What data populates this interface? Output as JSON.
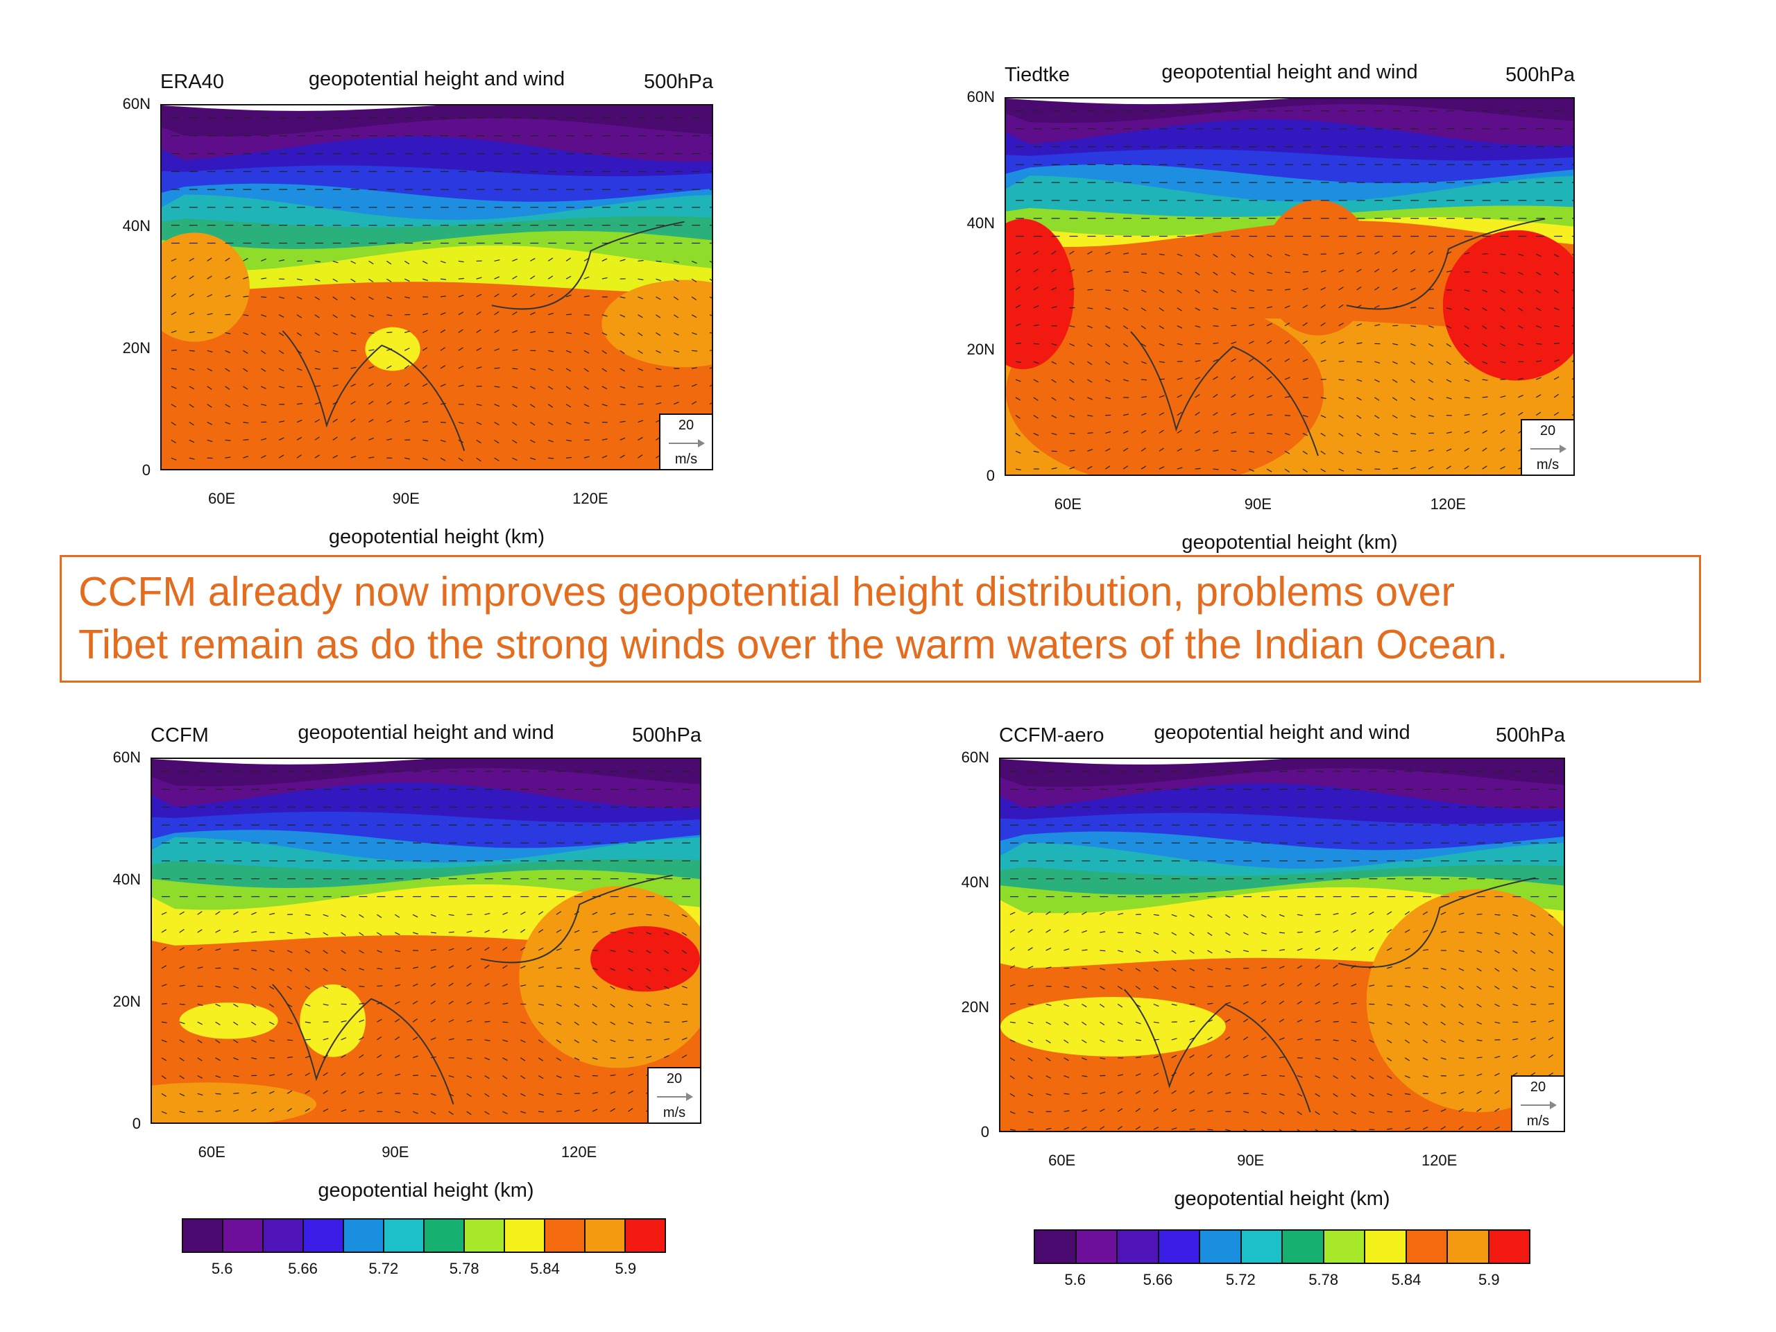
{
  "panels": [
    {
      "left_title": "ERA40",
      "center_title": "geopotential height and wind",
      "right_title": "500hPa",
      "y_labels": [
        "60N",
        "40N",
        "20N",
        "0"
      ],
      "x_labels": [
        "60E",
        "90E",
        "120E"
      ],
      "x_title": "geopotential height (km)",
      "ref_vector": {
        "value": "20",
        "unit": "m/s"
      }
    },
    {
      "left_title": "Tiedtke",
      "center_title": "geopotential height and wind",
      "right_title": "500hPa",
      "y_labels": [
        "60N",
        "40N",
        "20N",
        "0"
      ],
      "x_labels": [
        "60E",
        "90E",
        "120E"
      ],
      "x_title": "geopotential height (km)",
      "ref_vector": {
        "value": "20",
        "unit": "m/s"
      }
    },
    {
      "left_title": "CCFM",
      "center_title": "geopotential height and wind",
      "right_title": "500hPa",
      "y_labels": [
        "60N",
        "40N",
        "20N",
        "0"
      ],
      "x_labels": [
        "60E",
        "90E",
        "120E"
      ],
      "x_title": "geopotential height (km)",
      "ref_vector": {
        "value": "20",
        "unit": "m/s"
      }
    },
    {
      "left_title": "CCFM-aero",
      "center_title": "geopotential height and wind",
      "right_title": "500hPa",
      "y_labels": [
        "60N",
        "40N",
        "20N",
        "0"
      ],
      "x_labels": [
        "60E",
        "90E",
        "120E"
      ],
      "x_title": "geopotential height (km)",
      "ref_vector": {
        "value": "20",
        "unit": "m/s"
      }
    }
  ],
  "banner": {
    "line1": "CCFM already now improves geopotential height distribution, problems over",
    "line2": "Tibet remain as do the strong winds over the warm waters of the Indian Ocean."
  },
  "colorbar": {
    "labels": [
      "5.6",
      "5.66",
      "5.72",
      "5.78",
      "5.84",
      "5.9"
    ],
    "colors": [
      "#4b0a70",
      "#6d0f9a",
      "#4f14b8",
      "#3a1ee8",
      "#1a8fe0",
      "#1cc0c8",
      "#16b070",
      "#a8e82a",
      "#f4f21a",
      "#f46a0e",
      "#f49a10",
      "#f21a10"
    ]
  },
  "colors": {
    "accent": "#e46c1f"
  }
}
